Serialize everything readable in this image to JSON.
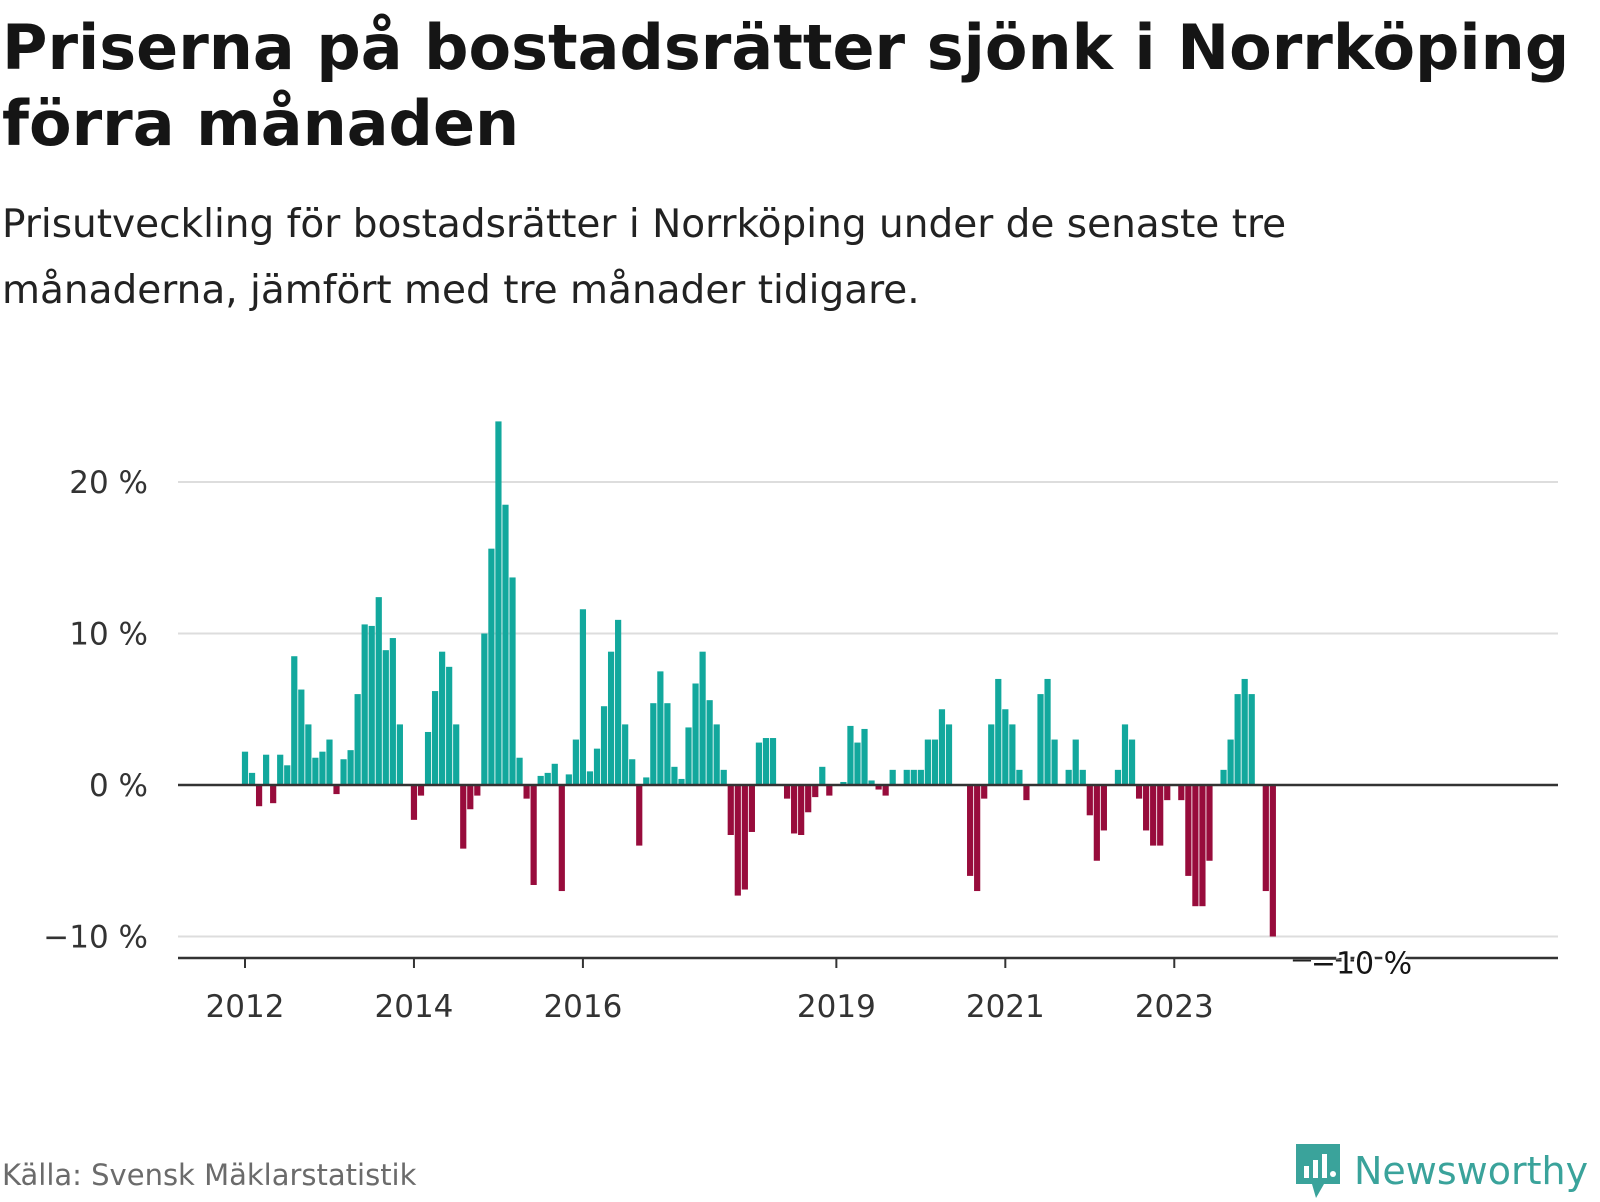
{
  "header": {
    "title": "Priserna på bostadsrätter sjönk i Norrköping förra månaden",
    "subtitle": "Prisutveckling för bostadsrätter i Norrköping under de senaste tre månaderna, jämfört med tre månader tidigare."
  },
  "footer": {
    "source": "Källa: Svensk Mäklarstatistik",
    "brand": "Newsworthy"
  },
  "colors": {
    "positive": "#12a89d",
    "negative": "#980c3c",
    "grid": "#dddddd",
    "axis": "#333333",
    "brand": "#3aa39b"
  },
  "chart_data": {
    "type": "bar",
    "start": "2012-01",
    "unit": "%",
    "yticks": [
      {
        "value": 20,
        "label": "20 %"
      },
      {
        "value": 10,
        "label": "10 %"
      },
      {
        "value": 0,
        "label": "0 %"
      },
      {
        "value": -10,
        "label": "−10 %"
      }
    ],
    "ylim": [
      -11.5,
      24
    ],
    "xticks": [
      {
        "index": 0,
        "label": "2012"
      },
      {
        "index": 24,
        "label": "2014"
      },
      {
        "index": 48,
        "label": "2016"
      },
      {
        "index": 84,
        "label": "2019"
      },
      {
        "index": 108,
        "label": "2021"
      },
      {
        "index": 132,
        "label": "2023"
      }
    ],
    "end_label": "−10 %",
    "values": [
      2.2,
      0.8,
      -1.4,
      2.0,
      -1.2,
      2.0,
      1.3,
      8.5,
      6.3,
      4.0,
      1.8,
      2.2,
      3.0,
      -0.6,
      1.7,
      2.3,
      6.0,
      10.6,
      10.5,
      12.4,
      8.9,
      9.7,
      4.0,
      0,
      -2.3,
      -0.7,
      3.5,
      6.2,
      8.8,
      7.8,
      4.0,
      -4.2,
      -1.6,
      -0.7,
      10.0,
      15.6,
      24.0,
      18.5,
      13.7,
      1.8,
      -0.9,
      -6.6,
      0.6,
      0.8,
      1.4,
      -7.0,
      0.7,
      3.0,
      11.6,
      0.9,
      2.4,
      5.2,
      8.8,
      10.9,
      4.0,
      1.7,
      -4.0,
      0.5,
      5.4,
      7.5,
      5.4,
      1.2,
      0.4,
      3.8,
      6.7,
      8.8,
      5.6,
      4.0,
      1.0,
      -3.3,
      -7.3,
      -6.9,
      -3.1,
      2.8,
      3.1,
      3.1,
      0,
      -0.9,
      -3.2,
      -3.3,
      -1.8,
      -0.8,
      1.2,
      -0.7,
      0,
      0.2,
      3.9,
      2.8,
      3.7,
      0.3,
      -0.3,
      -0.7,
      1.0,
      0,
      1.0,
      1.0,
      1.0,
      3.0,
      3.0,
      5.0,
      4.0,
      0,
      0,
      -6.0,
      -7.0,
      -0.9,
      4.0,
      7.0,
      5.0,
      4.0,
      1.0,
      -1.0,
      0,
      6.0,
      7.0,
      3.0,
      0,
      1.0,
      3.0,
      1.0,
      -2.0,
      -5.0,
      -3.0,
      0,
      1.0,
      4.0,
      3.0,
      -0.9,
      -3.0,
      -4.0,
      -4.0,
      -1.0,
      0,
      -1.0,
      -6.0,
      -8.0,
      -8.0,
      -5.0,
      0,
      1.0,
      3.0,
      6.0,
      7.0,
      6.0,
      0,
      -7.0,
      -10.0
    ]
  }
}
